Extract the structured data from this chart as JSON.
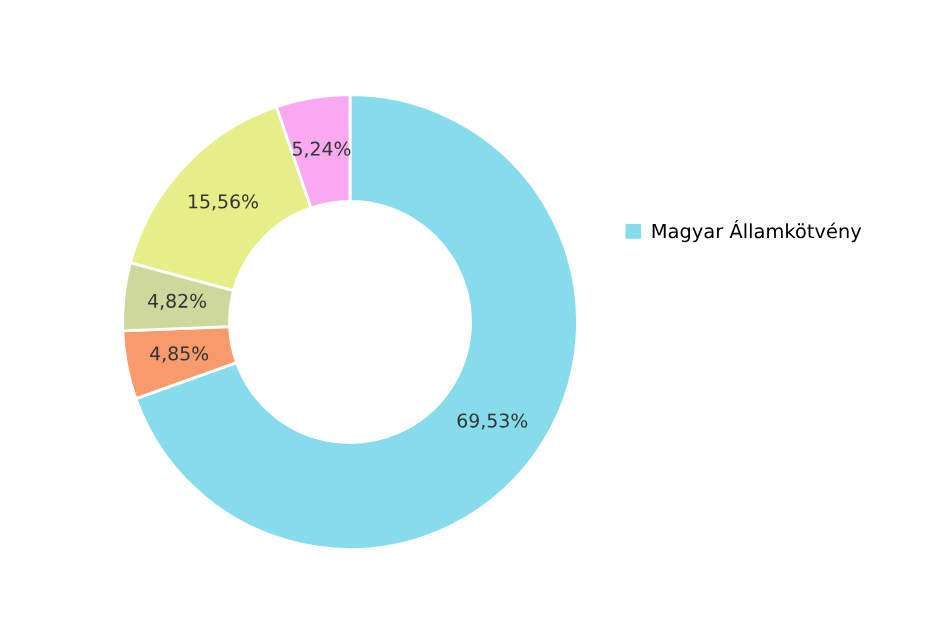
{
  "chart_data": {
    "type": "donut",
    "categories": [
      "Magyar Államkötvény",
      null,
      null,
      null,
      null
    ],
    "values": [
      69.53,
      4.85,
      4.82,
      15.56,
      5.24
    ],
    "value_labels": [
      "69,53%",
      "4,85%",
      "4,82%",
      "15,56%",
      "5,24%"
    ],
    "colors": [
      "#87dcec",
      "#f89a6c",
      "#cfd89c",
      "#e6ef87",
      "#f8a9f0"
    ],
    "legend": "right"
  }
}
